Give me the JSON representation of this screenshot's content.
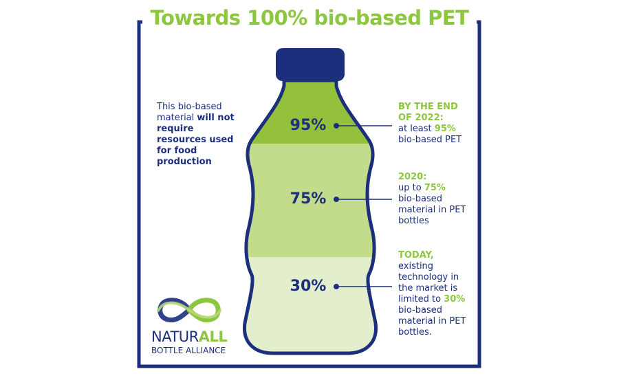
{
  "title": "Towards 100% bio-based PET",
  "colors": {
    "navy": "#1b2f7d",
    "green": "#8dc63f",
    "band_top": "#93c13c",
    "band_mid": "#c3dc8b",
    "band_low": "#e3efcc"
  },
  "left_note": {
    "text1": "This bio-based material ",
    "bold": "will not require resources used for food production"
  },
  "stages": [
    {
      "percent": "95%",
      "fill_fraction": 0.95,
      "lead": "BY THE END OF 2022:",
      "t1": "at least ",
      "hl": "95%",
      "t2": "bio-based PET"
    },
    {
      "percent": "75%",
      "fill_fraction": 0.75,
      "lead": "2020:",
      "t1": "up to ",
      "hl": "75%",
      "t2": "bio-based material in PET bottles"
    },
    {
      "percent": "30%",
      "fill_fraction": 0.3,
      "lead": "TODAY,",
      "t1": " existing technology in the market is limited to ",
      "hl": "30%",
      "t2": " bio-based material in PET bottles."
    }
  ],
  "logo": {
    "icon": "infinity-loops-icon",
    "name_part1": "NATUR",
    "name_part2": "ALL",
    "subtitle": "BOTTLE ALLIANCE"
  }
}
